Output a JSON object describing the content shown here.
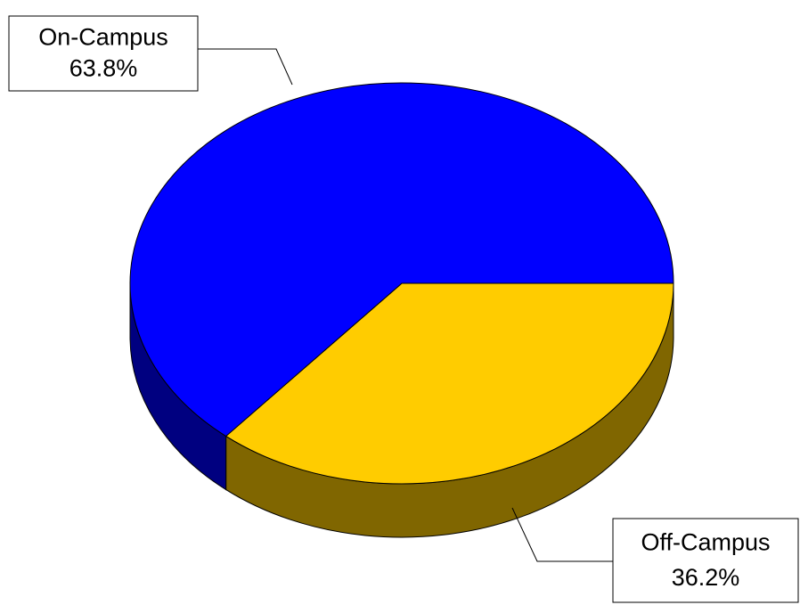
{
  "chart_data": {
    "type": "pie",
    "categories": [
      "Off-Campus",
      "On-Campus"
    ],
    "values": [
      36.2,
      63.8
    ],
    "value_labels": [
      "36.2%",
      "63.8%"
    ],
    "colors": [
      "#ffcc00",
      "#0000ff"
    ],
    "side_colors": [
      "#806600",
      "#000080"
    ]
  }
}
